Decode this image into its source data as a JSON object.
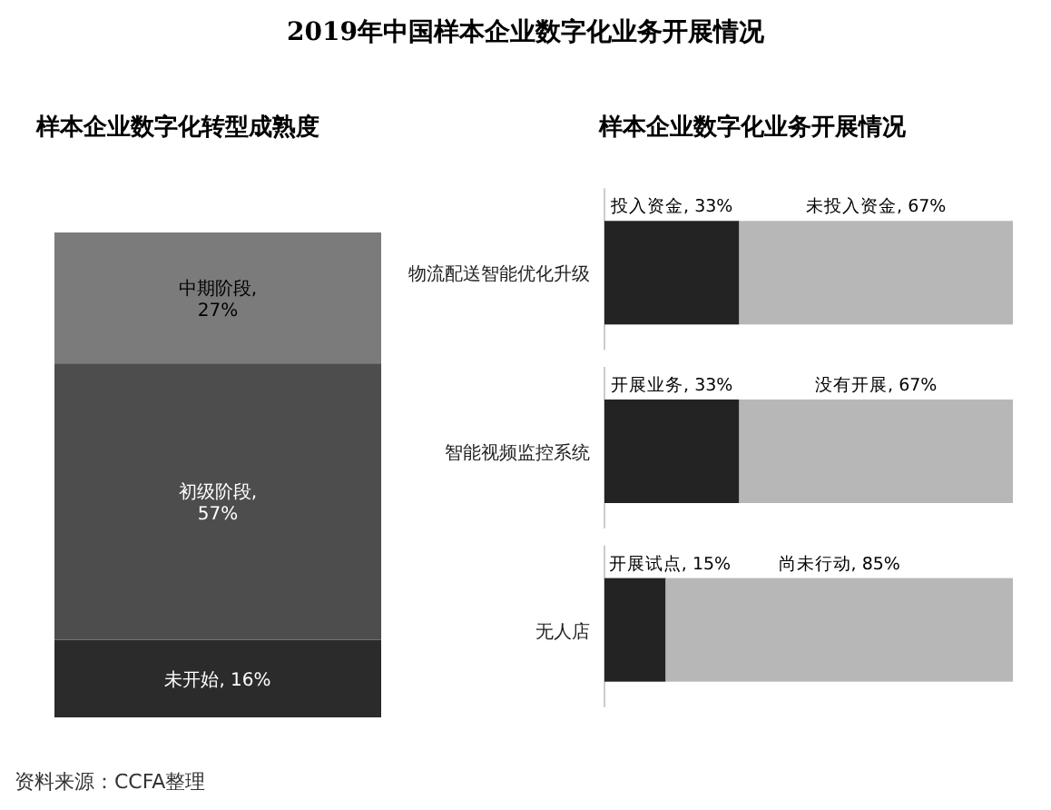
{
  "chart_data": [
    {
      "type": "bar",
      "title": "2019年中国样本企业数字化业务开展情况",
      "subtitle": "样本企业数字化转型成熟度",
      "stacked": true,
      "categories": [
        null
      ],
      "series": [
        {
          "color": "#2b2b2b",
          "values": [
            16
          ],
          "value_labels": [
            "未开始, 16%"
          ]
        },
        {
          "color": "#4d4d4d",
          "values": [
            57
          ],
          "value_labels": [
            "初级阶段,\n57%"
          ]
        },
        {
          "color": "#7b7b7b",
          "values": [
            27
          ],
          "value_labels": [
            "中期阶段,\n27%"
          ]
        }
      ],
      "annotations": [
        "资料来源：CCFA整理"
      ]
    },
    {
      "type": "bar",
      "title": "样本企业数字化业务开展情况",
      "stacked": true,
      "orientation": "horizontal",
      "categories": [
        "物流配送智能优化升级",
        "智能视频监控系统",
        "无人店"
      ],
      "series": [
        {
          "color": "#232323",
          "values": [
            33,
            33,
            15
          ],
          "value_labels": [
            "投入资金, 33%",
            "开展业务, 33%",
            "开展试点, 15%"
          ]
        },
        {
          "color": "#b7b7b7",
          "values": [
            67,
            67,
            85
          ],
          "value_labels": [
            "未投入资金, 67%",
            "没有开展, 67%",
            "尚未行动, 85%"
          ]
        }
      ]
    }
  ]
}
